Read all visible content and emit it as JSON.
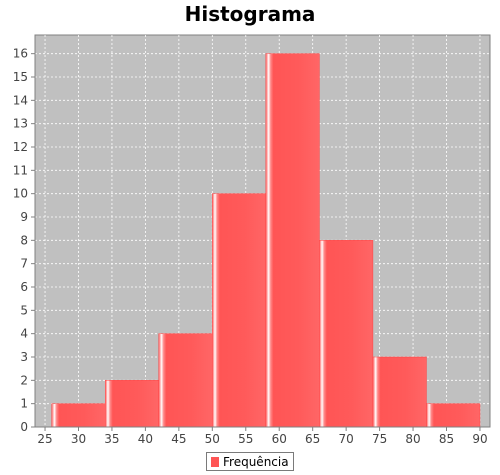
{
  "chart_data": {
    "type": "bar",
    "title": "Histograma",
    "xlabel": "",
    "ylabel": "",
    "bins": [
      {
        "start": 26.0,
        "end": 34.0,
        "count": 1
      },
      {
        "start": 34.0,
        "end": 42.0,
        "count": 2
      },
      {
        "start": 42.0,
        "end": 50.0,
        "count": 4
      },
      {
        "start": 50.0,
        "end": 58.0,
        "count": 10
      },
      {
        "start": 58.0,
        "end": 66.0,
        "count": 16
      },
      {
        "start": 66.0,
        "end": 74.0,
        "count": 8
      },
      {
        "start": 74.0,
        "end": 82.0,
        "count": 3
      },
      {
        "start": 82.0,
        "end": 90.0,
        "count": 1
      }
    ],
    "series": [
      {
        "name": "Frequência",
        "values": [
          1,
          2,
          4,
          10,
          16,
          8,
          3,
          1
        ]
      }
    ],
    "xlim": [
      23.5,
      91.5
    ],
    "ylim": [
      0,
      16.8
    ],
    "x_ticks": [
      25,
      30,
      35,
      40,
      45,
      50,
      55,
      60,
      65,
      70,
      75,
      80,
      85,
      90
    ],
    "y_ticks": [
      0,
      1,
      2,
      3,
      4,
      5,
      6,
      7,
      8,
      9,
      10,
      11,
      12,
      13,
      14,
      15,
      16
    ],
    "grid": true,
    "legend_position": "bottom",
    "colors": {
      "bar": "#ff5555",
      "bar_highlight": "#ffffff",
      "plot_background": "#c0c0c0",
      "grid": "#ffffff"
    }
  }
}
